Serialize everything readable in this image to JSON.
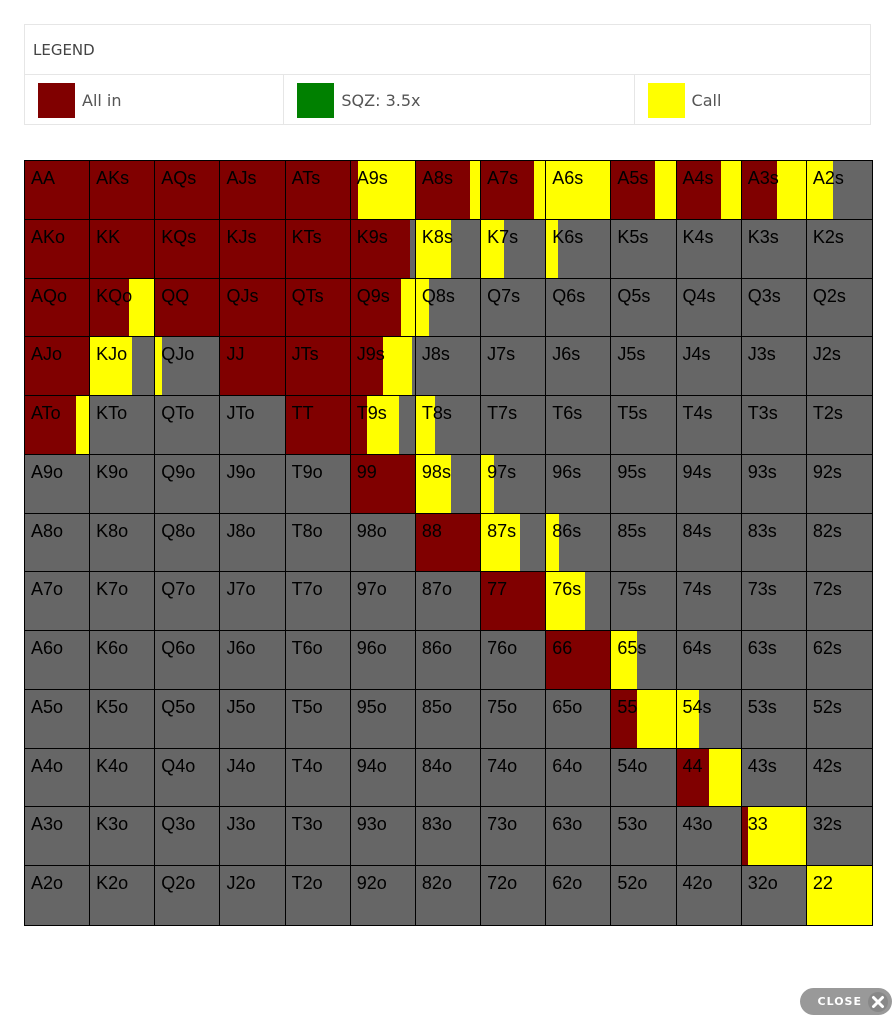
{
  "legend": {
    "title": "LEGEND",
    "items": [
      {
        "label": "All in",
        "color": "#800000"
      },
      {
        "label": "SQZ: 3.5x",
        "color": "#008000"
      },
      {
        "label": "Call",
        "color": "#ffff00"
      }
    ]
  },
  "colors": {
    "allin": "#800000",
    "call": "#ffff00",
    "fold": "#666666"
  },
  "grid": {
    "rows": [
      [
        {
          "hand": "AA",
          "allin": 1,
          "call": 0
        },
        {
          "hand": "AKs",
          "allin": 1,
          "call": 0
        },
        {
          "hand": "AQs",
          "allin": 1,
          "call": 0
        },
        {
          "hand": "AJs",
          "allin": 1,
          "call": 0
        },
        {
          "hand": "ATs",
          "allin": 1,
          "call": 0
        },
        {
          "hand": "A9s",
          "allin": 0.12,
          "call": 0.88
        },
        {
          "hand": "A8s",
          "allin": 0.85,
          "call": 0.15
        },
        {
          "hand": "A7s",
          "allin": 0.82,
          "call": 0.18
        },
        {
          "hand": "A6s",
          "allin": 0,
          "call": 1
        },
        {
          "hand": "A5s",
          "allin": 0.68,
          "call": 0.32
        },
        {
          "hand": "A4s",
          "allin": 0.7,
          "call": 0.3
        },
        {
          "hand": "A3s",
          "allin": 0.55,
          "call": 0.45
        },
        {
          "hand": "A2s",
          "allin": 0,
          "call": 0.4
        }
      ],
      [
        {
          "hand": "AKo",
          "allin": 1,
          "call": 0
        },
        {
          "hand": "KK",
          "allin": 1,
          "call": 0
        },
        {
          "hand": "KQs",
          "allin": 1,
          "call": 0
        },
        {
          "hand": "KJs",
          "allin": 1,
          "call": 0
        },
        {
          "hand": "KTs",
          "allin": 1,
          "call": 0
        },
        {
          "hand": "K9s",
          "allin": 0.92,
          "call": 0
        },
        {
          "hand": "K8s",
          "allin": 0,
          "call": 0.55
        },
        {
          "hand": "K7s",
          "allin": 0,
          "call": 0.35
        },
        {
          "hand": "K6s",
          "allin": 0,
          "call": 0.18
        },
        {
          "hand": "K5s",
          "allin": 0,
          "call": 0
        },
        {
          "hand": "K4s",
          "allin": 0,
          "call": 0
        },
        {
          "hand": "K3s",
          "allin": 0,
          "call": 0
        },
        {
          "hand": "K2s",
          "allin": 0,
          "call": 0
        }
      ],
      [
        {
          "hand": "AQo",
          "allin": 1,
          "call": 0
        },
        {
          "hand": "KQo",
          "allin": 0.6,
          "call": 0.4
        },
        {
          "hand": "QQ",
          "allin": 1,
          "call": 0
        },
        {
          "hand": "QJs",
          "allin": 1,
          "call": 0
        },
        {
          "hand": "QTs",
          "allin": 1,
          "call": 0
        },
        {
          "hand": "Q9s",
          "allin": 0.78,
          "call": 0.22
        },
        {
          "hand": "Q8s",
          "allin": 0,
          "call": 0.2
        },
        {
          "hand": "Q7s",
          "allin": 0,
          "call": 0
        },
        {
          "hand": "Q6s",
          "allin": 0,
          "call": 0
        },
        {
          "hand": "Q5s",
          "allin": 0,
          "call": 0
        },
        {
          "hand": "Q4s",
          "allin": 0,
          "call": 0
        },
        {
          "hand": "Q3s",
          "allin": 0,
          "call": 0
        },
        {
          "hand": "Q2s",
          "allin": 0,
          "call": 0
        }
      ],
      [
        {
          "hand": "AJo",
          "allin": 1,
          "call": 0
        },
        {
          "hand": "KJo",
          "allin": 0,
          "call": 0.65
        },
        {
          "hand": "QJo",
          "allin": 0,
          "call": 0.1
        },
        {
          "hand": "JJ",
          "allin": 1,
          "call": 0
        },
        {
          "hand": "JTs",
          "allin": 1,
          "call": 0
        },
        {
          "hand": "J9s",
          "allin": 0.5,
          "call": 0.45
        },
        {
          "hand": "J8s",
          "allin": 0,
          "call": 0
        },
        {
          "hand": "J7s",
          "allin": 0,
          "call": 0
        },
        {
          "hand": "J6s",
          "allin": 0,
          "call": 0
        },
        {
          "hand": "J5s",
          "allin": 0,
          "call": 0
        },
        {
          "hand": "J4s",
          "allin": 0,
          "call": 0
        },
        {
          "hand": "J3s",
          "allin": 0,
          "call": 0
        },
        {
          "hand": "J2s",
          "allin": 0,
          "call": 0
        }
      ],
      [
        {
          "hand": "ATo",
          "allin": 0.8,
          "call": 0.2
        },
        {
          "hand": "KTo",
          "allin": 0,
          "call": 0
        },
        {
          "hand": "QTo",
          "allin": 0,
          "call": 0
        },
        {
          "hand": "JTo",
          "allin": 0,
          "call": 0
        },
        {
          "hand": "TT",
          "allin": 1,
          "call": 0
        },
        {
          "hand": "T9s",
          "allin": 0.25,
          "call": 0.5
        },
        {
          "hand": "T8s",
          "allin": 0,
          "call": 0.3
        },
        {
          "hand": "T7s",
          "allin": 0,
          "call": 0
        },
        {
          "hand": "T6s",
          "allin": 0,
          "call": 0
        },
        {
          "hand": "T5s",
          "allin": 0,
          "call": 0
        },
        {
          "hand": "T4s",
          "allin": 0,
          "call": 0
        },
        {
          "hand": "T3s",
          "allin": 0,
          "call": 0
        },
        {
          "hand": "T2s",
          "allin": 0,
          "call": 0
        }
      ],
      [
        {
          "hand": "A9o",
          "allin": 0,
          "call": 0
        },
        {
          "hand": "K9o",
          "allin": 0,
          "call": 0
        },
        {
          "hand": "Q9o",
          "allin": 0,
          "call": 0
        },
        {
          "hand": "J9o",
          "allin": 0,
          "call": 0
        },
        {
          "hand": "T9o",
          "allin": 0,
          "call": 0
        },
        {
          "hand": "99",
          "allin": 1,
          "call": 0
        },
        {
          "hand": "98s",
          "allin": 0,
          "call": 0.55
        },
        {
          "hand": "97s",
          "allin": 0,
          "call": 0.2
        },
        {
          "hand": "96s",
          "allin": 0,
          "call": 0
        },
        {
          "hand": "95s",
          "allin": 0,
          "call": 0
        },
        {
          "hand": "94s",
          "allin": 0,
          "call": 0
        },
        {
          "hand": "93s",
          "allin": 0,
          "call": 0
        },
        {
          "hand": "92s",
          "allin": 0,
          "call": 0
        }
      ],
      [
        {
          "hand": "A8o",
          "allin": 0,
          "call": 0
        },
        {
          "hand": "K8o",
          "allin": 0,
          "call": 0
        },
        {
          "hand": "Q8o",
          "allin": 0,
          "call": 0
        },
        {
          "hand": "J8o",
          "allin": 0,
          "call": 0
        },
        {
          "hand": "T8o",
          "allin": 0,
          "call": 0
        },
        {
          "hand": "98o",
          "allin": 0,
          "call": 0
        },
        {
          "hand": "88",
          "allin": 1,
          "call": 0
        },
        {
          "hand": "87s",
          "allin": 0,
          "call": 0.6
        },
        {
          "hand": "86s",
          "allin": 0,
          "call": 0.2
        },
        {
          "hand": "85s",
          "allin": 0,
          "call": 0
        },
        {
          "hand": "84s",
          "allin": 0,
          "call": 0
        },
        {
          "hand": "83s",
          "allin": 0,
          "call": 0
        },
        {
          "hand": "82s",
          "allin": 0,
          "call": 0
        }
      ],
      [
        {
          "hand": "A7o",
          "allin": 0,
          "call": 0
        },
        {
          "hand": "K7o",
          "allin": 0,
          "call": 0
        },
        {
          "hand": "Q7o",
          "allin": 0,
          "call": 0
        },
        {
          "hand": "J7o",
          "allin": 0,
          "call": 0
        },
        {
          "hand": "T7o",
          "allin": 0,
          "call": 0
        },
        {
          "hand": "97o",
          "allin": 0,
          "call": 0
        },
        {
          "hand": "87o",
          "allin": 0,
          "call": 0
        },
        {
          "hand": "77",
          "allin": 1,
          "call": 0
        },
        {
          "hand": "76s",
          "allin": 0,
          "call": 0.6
        },
        {
          "hand": "75s",
          "allin": 0,
          "call": 0
        },
        {
          "hand": "74s",
          "allin": 0,
          "call": 0
        },
        {
          "hand": "73s",
          "allin": 0,
          "call": 0
        },
        {
          "hand": "72s",
          "allin": 0,
          "call": 0
        }
      ],
      [
        {
          "hand": "A6o",
          "allin": 0,
          "call": 0
        },
        {
          "hand": "K6o",
          "allin": 0,
          "call": 0
        },
        {
          "hand": "Q6o",
          "allin": 0,
          "call": 0
        },
        {
          "hand": "J6o",
          "allin": 0,
          "call": 0
        },
        {
          "hand": "T6o",
          "allin": 0,
          "call": 0
        },
        {
          "hand": "96o",
          "allin": 0,
          "call": 0
        },
        {
          "hand": "86o",
          "allin": 0,
          "call": 0
        },
        {
          "hand": "76o",
          "allin": 0,
          "call": 0
        },
        {
          "hand": "66",
          "allin": 1,
          "call": 0
        },
        {
          "hand": "65s",
          "allin": 0,
          "call": 0.4
        },
        {
          "hand": "64s",
          "allin": 0,
          "call": 0
        },
        {
          "hand": "63s",
          "allin": 0,
          "call": 0
        },
        {
          "hand": "62s",
          "allin": 0,
          "call": 0
        }
      ],
      [
        {
          "hand": "A5o",
          "allin": 0,
          "call": 0
        },
        {
          "hand": "K5o",
          "allin": 0,
          "call": 0
        },
        {
          "hand": "Q5o",
          "allin": 0,
          "call": 0
        },
        {
          "hand": "J5o",
          "allin": 0,
          "call": 0
        },
        {
          "hand": "T5o",
          "allin": 0,
          "call": 0
        },
        {
          "hand": "95o",
          "allin": 0,
          "call": 0
        },
        {
          "hand": "85o",
          "allin": 0,
          "call": 0
        },
        {
          "hand": "75o",
          "allin": 0,
          "call": 0
        },
        {
          "hand": "65o",
          "allin": 0,
          "call": 0
        },
        {
          "hand": "55",
          "allin": 0.4,
          "call": 0.6
        },
        {
          "hand": "54s",
          "allin": 0,
          "call": 0.35
        },
        {
          "hand": "53s",
          "allin": 0,
          "call": 0
        },
        {
          "hand": "52s",
          "allin": 0,
          "call": 0
        }
      ],
      [
        {
          "hand": "A4o",
          "allin": 0,
          "call": 0
        },
        {
          "hand": "K4o",
          "allin": 0,
          "call": 0
        },
        {
          "hand": "Q4o",
          "allin": 0,
          "call": 0
        },
        {
          "hand": "J4o",
          "allin": 0,
          "call": 0
        },
        {
          "hand": "T4o",
          "allin": 0,
          "call": 0
        },
        {
          "hand": "94o",
          "allin": 0,
          "call": 0
        },
        {
          "hand": "84o",
          "allin": 0,
          "call": 0
        },
        {
          "hand": "74o",
          "allin": 0,
          "call": 0
        },
        {
          "hand": "64o",
          "allin": 0,
          "call": 0
        },
        {
          "hand": "54o",
          "allin": 0,
          "call": 0
        },
        {
          "hand": "44",
          "allin": 0.5,
          "call": 0.5
        },
        {
          "hand": "43s",
          "allin": 0,
          "call": 0
        },
        {
          "hand": "42s",
          "allin": 0,
          "call": 0
        }
      ],
      [
        {
          "hand": "A3o",
          "allin": 0,
          "call": 0
        },
        {
          "hand": "K3o",
          "allin": 0,
          "call": 0
        },
        {
          "hand": "Q3o",
          "allin": 0,
          "call": 0
        },
        {
          "hand": "J3o",
          "allin": 0,
          "call": 0
        },
        {
          "hand": "T3o",
          "allin": 0,
          "call": 0
        },
        {
          "hand": "93o",
          "allin": 0,
          "call": 0
        },
        {
          "hand": "83o",
          "allin": 0,
          "call": 0
        },
        {
          "hand": "73o",
          "allin": 0,
          "call": 0
        },
        {
          "hand": "63o",
          "allin": 0,
          "call": 0
        },
        {
          "hand": "53o",
          "allin": 0,
          "call": 0
        },
        {
          "hand": "43o",
          "allin": 0,
          "call": 0
        },
        {
          "hand": "33",
          "allin": 0.1,
          "call": 0.9
        },
        {
          "hand": "32s",
          "allin": 0,
          "call": 0
        }
      ],
      [
        {
          "hand": "A2o",
          "allin": 0,
          "call": 0
        },
        {
          "hand": "K2o",
          "allin": 0,
          "call": 0
        },
        {
          "hand": "Q2o",
          "allin": 0,
          "call": 0
        },
        {
          "hand": "J2o",
          "allin": 0,
          "call": 0
        },
        {
          "hand": "T2o",
          "allin": 0,
          "call": 0
        },
        {
          "hand": "92o",
          "allin": 0,
          "call": 0
        },
        {
          "hand": "82o",
          "allin": 0,
          "call": 0
        },
        {
          "hand": "72o",
          "allin": 0,
          "call": 0
        },
        {
          "hand": "62o",
          "allin": 0,
          "call": 0
        },
        {
          "hand": "52o",
          "allin": 0,
          "call": 0
        },
        {
          "hand": "42o",
          "allin": 0,
          "call": 0
        },
        {
          "hand": "32o",
          "allin": 0,
          "call": 0
        },
        {
          "hand": "22",
          "allin": 0,
          "call": 1
        }
      ]
    ]
  },
  "close": {
    "label": "CLOSE",
    "icon": "close-icon"
  }
}
